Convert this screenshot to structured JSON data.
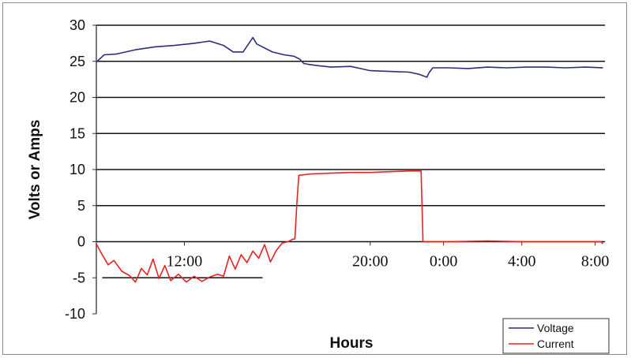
{
  "chart_data": {
    "type": "line",
    "title": "",
    "xlabel": "Hours",
    "ylabel": "Volts or Amps",
    "ylim": [
      -10,
      30
    ],
    "yticks": [
      30,
      25,
      20,
      15,
      10,
      5,
      0,
      -5,
      -10
    ],
    "xlim": [
      6,
      32
    ],
    "xtick_labels": [
      {
        "label": "12:00",
        "value": 10.5
      },
      {
        "label": "20:00",
        "value": 20
      },
      {
        "label": "0:00",
        "value": 23.75
      },
      {
        "label": "4:00",
        "value": 27.75
      },
      {
        "label": "8:00",
        "value": 31.5
      }
    ],
    "grid": true,
    "legend_position": "bottom-right",
    "reference_lines": [
      {
        "y": -5,
        "x": [
          6.3,
          14.5
        ]
      }
    ],
    "series": [
      {
        "name": "Voltage",
        "color": "#2b2e7a",
        "x": [
          6.0,
          6.4,
          7.0,
          8.0,
          9.0,
          10.0,
          11.0,
          11.8,
          12.5,
          13.0,
          13.5,
          14.0,
          14.2,
          15.0,
          15.6,
          16.1,
          16.4,
          16.6,
          16.8,
          17.3,
          18.0,
          19.0,
          19.5,
          20.0,
          21.0,
          22.0,
          22.5,
          22.9,
          23.0,
          23.2,
          24.0,
          25.0,
          26.0,
          27.0,
          28.0,
          29.0,
          30.0,
          31.0,
          31.9
        ],
        "values": [
          24.9,
          25.9,
          26.0,
          26.6,
          27.0,
          27.2,
          27.5,
          27.8,
          27.2,
          26.3,
          26.3,
          28.3,
          27.4,
          26.3,
          25.9,
          25.7,
          25.3,
          24.7,
          24.6,
          24.4,
          24.2,
          24.3,
          24.0,
          23.7,
          23.6,
          23.5,
          23.2,
          22.8,
          23.4,
          24.1,
          24.1,
          24.0,
          24.2,
          24.1,
          24.2,
          24.2,
          24.1,
          24.2,
          24.1
        ]
      },
      {
        "name": "Current",
        "color": "#e8231f",
        "x": [
          6.0,
          6.3,
          6.6,
          6.9,
          7.3,
          7.7,
          8.0,
          8.3,
          8.6,
          8.9,
          9.2,
          9.5,
          9.8,
          10.2,
          10.6,
          11.0,
          11.4,
          11.8,
          12.2,
          12.5,
          12.8,
          13.1,
          13.4,
          13.7,
          14.0,
          14.3,
          14.6,
          14.9,
          15.2,
          15.5,
          15.8,
          16.0,
          16.15,
          16.25,
          16.35,
          17.0,
          18.0,
          19.0,
          20.0,
          21.0,
          22.0,
          22.6,
          22.7,
          22.75,
          24.0,
          26.0,
          28.0,
          30.0,
          31.8,
          31.9
        ],
        "values": [
          -0.3,
          -1.8,
          -3.2,
          -2.6,
          -4.1,
          -4.7,
          -5.6,
          -3.7,
          -4.6,
          -2.4,
          -5.1,
          -3.3,
          -5.4,
          -4.5,
          -5.6,
          -4.8,
          -5.5,
          -4.9,
          -4.5,
          -4.8,
          -2.0,
          -3.8,
          -1.8,
          -2.9,
          -1.3,
          -2.3,
          -0.4,
          -2.8,
          -1.2,
          -0.2,
          0.0,
          0.3,
          0.4,
          5.3,
          9.2,
          9.4,
          9.5,
          9.6,
          9.6,
          9.7,
          9.8,
          9.8,
          0.0,
          0.0,
          0.0,
          0.1,
          0.0,
          0.0,
          0.0,
          -0.3
        ]
      }
    ]
  }
}
